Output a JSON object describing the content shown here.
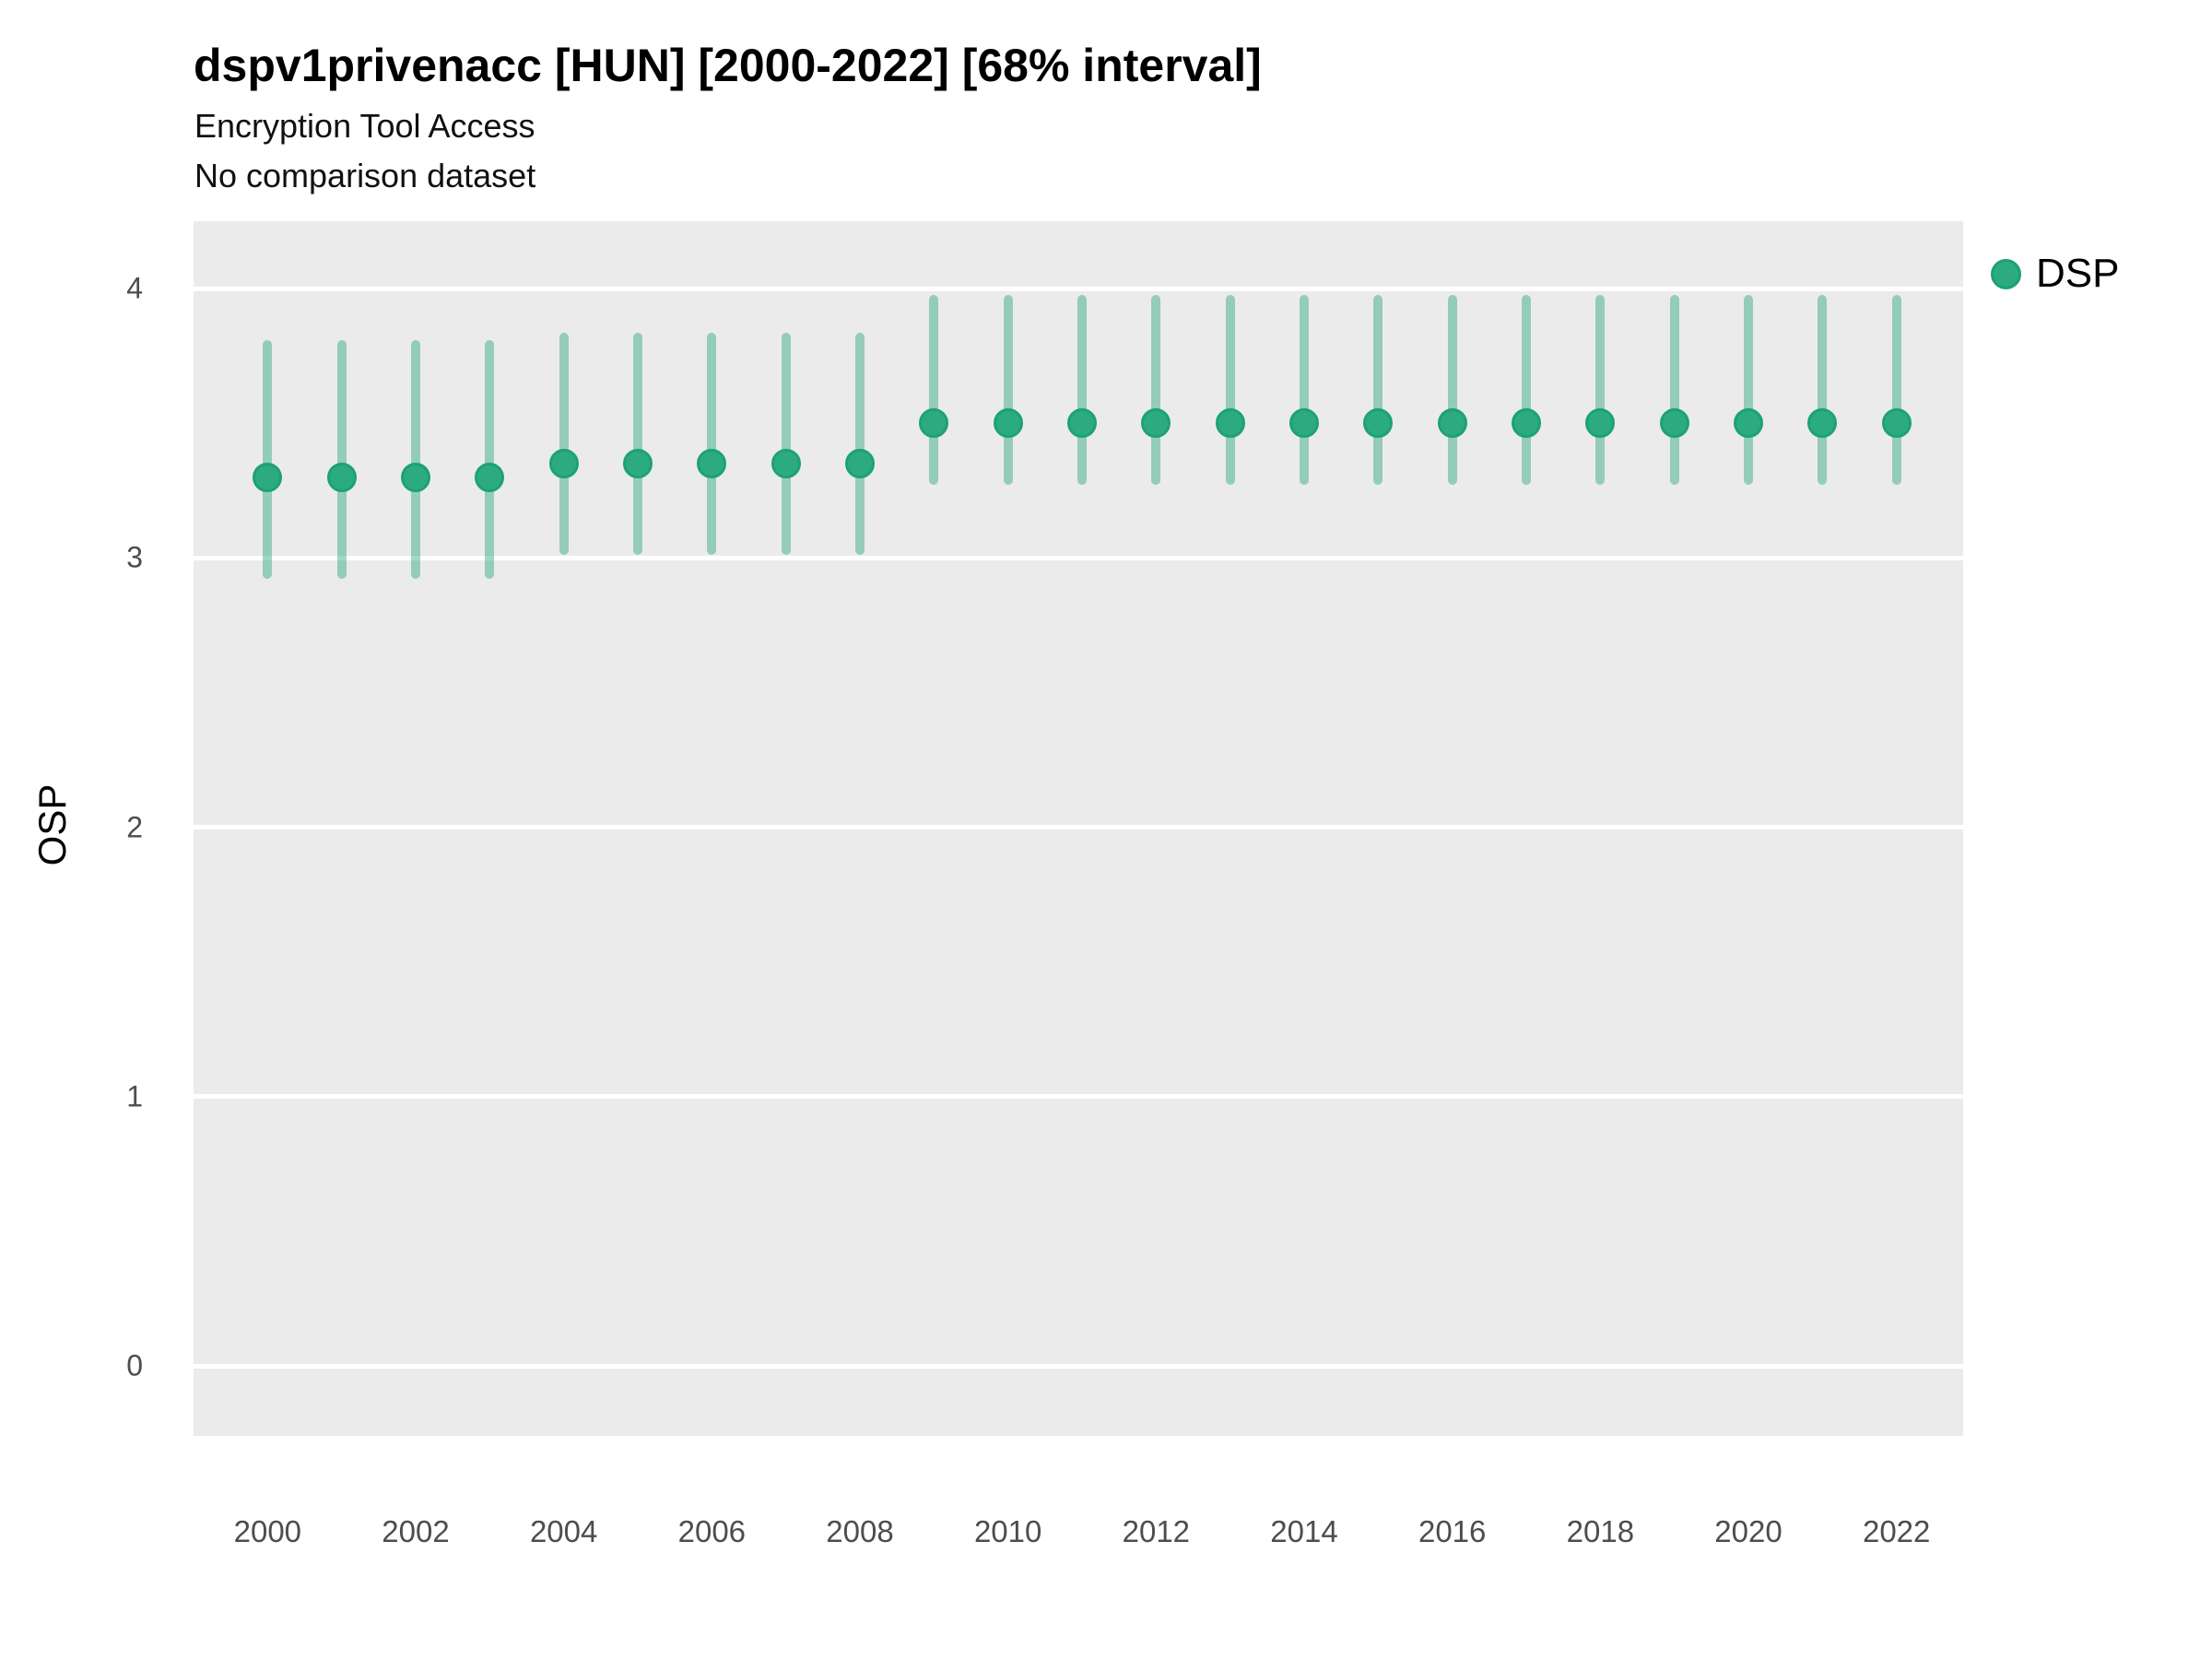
{
  "page": {
    "title": "dspv1privenacc [HUN] [2000-2022] [68% interval]",
    "subtitle": "Encryption Tool Access",
    "note": "No comparison dataset"
  },
  "legend": {
    "position": "right",
    "items": [
      {
        "label": "DSP",
        "color": "#2dab80",
        "border_color": "#1da176"
      }
    ]
  },
  "chart_data": {
    "type": "scatter",
    "subtype": "pointrange",
    "title": "dspv1privenacc [HUN] [2000-2022] [68% interval]",
    "subtitle": "Encryption Tool Access",
    "note": "No comparison dataset",
    "interval_label": "68% interval",
    "xlabel": "",
    "ylabel": "OSP",
    "x": [
      2000,
      2001,
      2002,
      2003,
      2004,
      2005,
      2006,
      2007,
      2008,
      2009,
      2010,
      2011,
      2012,
      2013,
      2014,
      2015,
      2016,
      2017,
      2018,
      2019,
      2020,
      2021,
      2022
    ],
    "series": [
      {
        "name": "DSP",
        "values": [
          3.3,
          3.3,
          3.3,
          3.3,
          3.35,
          3.35,
          3.35,
          3.35,
          3.35,
          3.5,
          3.5,
          3.5,
          3.5,
          3.5,
          3.5,
          3.5,
          3.5,
          3.5,
          3.5,
          3.5,
          3.5,
          3.5,
          3.5
        ],
        "lower": [
          2.94,
          2.94,
          2.94,
          2.94,
          3.03,
          3.03,
          3.03,
          3.03,
          3.03,
          3.29,
          3.29,
          3.29,
          3.29,
          3.29,
          3.29,
          3.29,
          3.29,
          3.29,
          3.29,
          3.29,
          3.29,
          3.29,
          3.29
        ],
        "upper": [
          3.79,
          3.79,
          3.79,
          3.79,
          3.82,
          3.82,
          3.82,
          3.82,
          3.82,
          3.96,
          3.96,
          3.96,
          3.96,
          3.96,
          3.96,
          3.96,
          3.96,
          3.96,
          3.96,
          3.96,
          3.96,
          3.96,
          3.96
        ]
      }
    ],
    "xticks": [
      2000,
      2002,
      2004,
      2006,
      2008,
      2010,
      2012,
      2014,
      2016,
      2018,
      2020,
      2022
    ],
    "yticks": [
      0,
      1,
      2,
      3,
      4
    ],
    "xlim": [
      1999.0,
      2022.9
    ],
    "ylim": [
      -0.26,
      4.25
    ],
    "grid": "major-horizontal-only",
    "legend_position": "right",
    "panel_bg": "#ebebeb",
    "gridline_color": "#ffffff",
    "point_color": "#2dab80",
    "point_border_color": "#1da176",
    "bar_color": "rgba(29,161,118,0.42)"
  }
}
